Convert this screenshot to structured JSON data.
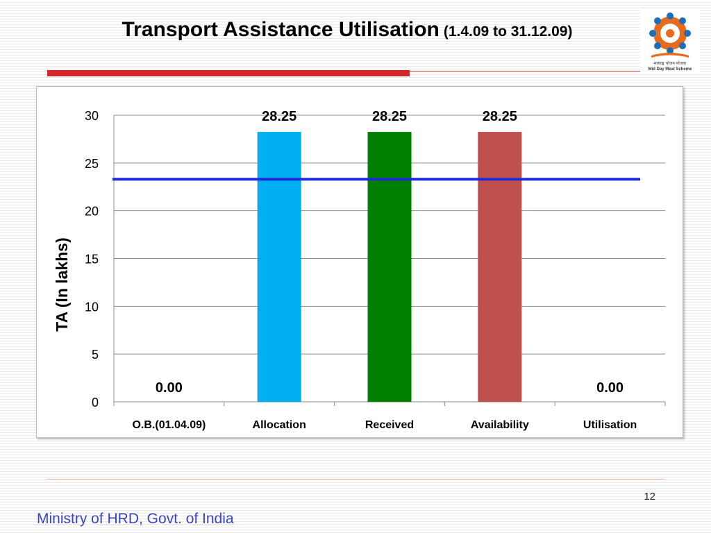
{
  "slide": {
    "title_main": "Transport Assistance Utilisation",
    "title_sub": "(1.4.09 to 31.12.09)",
    "page_number": "12",
    "footer": "Ministry of HRD, Govt. of India",
    "logo_caption_hindi": "मध्याह्न भोजन योजना",
    "logo_caption": "Mid Day Meal Scheme"
  },
  "colors": {
    "title_rule": "#d7262b",
    "footer_text": "#3a45c8",
    "reference_line": "#1f2bd6"
  },
  "chart_data": {
    "type": "bar",
    "categories": [
      "O.B.(01.04.09)",
      "Allocation",
      "Received",
      "Availability",
      "Utilisation"
    ],
    "values": [
      0,
      28.25,
      28.25,
      28.25,
      0
    ],
    "data_labels": [
      "0.00",
      "28.25",
      "28.25",
      "28.25",
      "0.00"
    ],
    "bar_colors": [
      "#4f81bd",
      "#00b0f0",
      "#008000",
      "#c0504d",
      "#4f81bd"
    ],
    "ylabel": "TA (In lakhs)",
    "ylim": [
      0,
      30
    ],
    "yticks": [
      0,
      5,
      10,
      15,
      20,
      25,
      30
    ],
    "grid": true,
    "reference_line_value": 23.3,
    "legend": "none"
  }
}
